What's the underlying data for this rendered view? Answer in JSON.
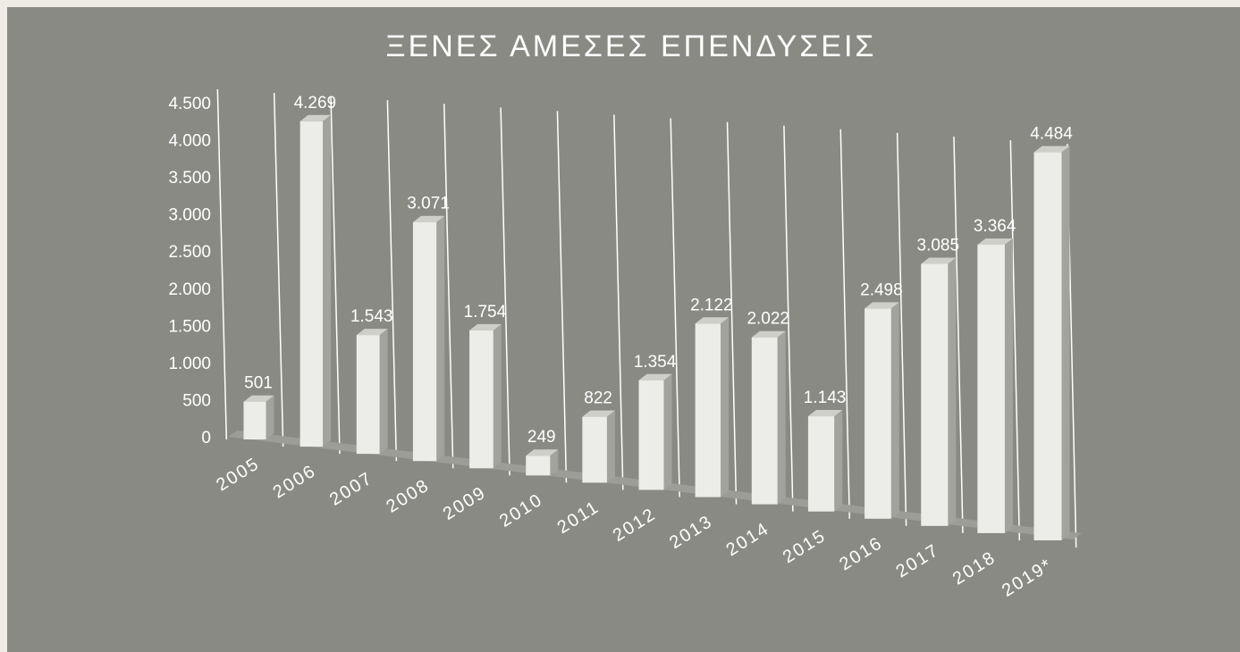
{
  "chart_data": {
    "type": "bar3d",
    "title": "ΞΕΝΕΣ ΑΜΕΣΕΣ ΕΠΕΝΔΥΣΕΙΣ",
    "categories": [
      "2005",
      "2006",
      "2007",
      "2008",
      "2009",
      "2010",
      "2011",
      "2012",
      "2013",
      "2014",
      "2015",
      "2016",
      "2017",
      "2018",
      "2019*"
    ],
    "values": [
      501,
      4269,
      1543,
      3071,
      1754,
      249,
      822,
      1354,
      2122,
      2022,
      1143,
      2498,
      3085,
      3364,
      4484
    ],
    "value_labels": [
      "501",
      "4.269",
      "1.543",
      "3.071",
      "1.754",
      "249",
      "822",
      "1.354",
      "2.122",
      "2.022",
      "1.143",
      "2.498",
      "3.085",
      "3.364",
      "4.484"
    ],
    "color": "#ececE8",
    "ylim": [
      0,
      4500
    ],
    "yticks": [
      0,
      500,
      {
        "value": 1000,
        "label": "1.000"
      },
      {
        "value": 1500,
        "label": "1.500"
      },
      {
        "value": 2000,
        "label": "2.000"
      },
      {
        "value": 2500,
        "label": "2.500"
      },
      {
        "value": 3000,
        "label": "3.000"
      },
      {
        "value": 3500,
        "label": "3.500"
      },
      {
        "value": 4000,
        "label": "4.000"
      },
      {
        "value": 4500,
        "label": "4.500"
      }
    ]
  }
}
